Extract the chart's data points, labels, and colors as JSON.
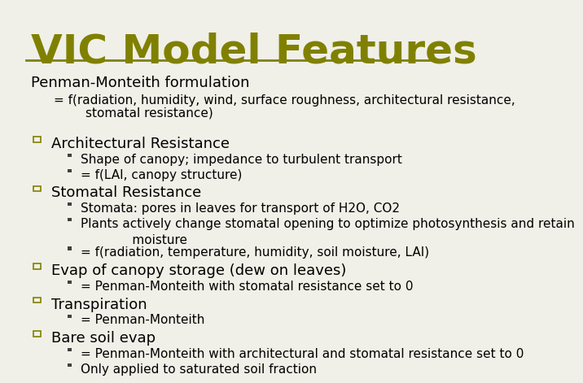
{
  "title": "VIC Model Features",
  "title_color": "#808000",
  "title_fontsize": 36,
  "bg_color": "#f0f0e8",
  "line_color": "#808000",
  "body_color": "#000000",
  "section_header": "Penman-Monteith formulation",
  "section_sub1": "= f(radiation, humidity, wind, surface roughness, architectural resistance,",
  "section_sub2": "        stomatal resistance)",
  "bullet_items": [
    {
      "label": "Architectural Resistance",
      "subitems": [
        "Shape of canopy; impedance to turbulent transport",
        "= f(LAI, canopy structure)"
      ]
    },
    {
      "label": "Stomatal Resistance",
      "subitems": [
        "Stomata: pores in leaves for transport of H2O, CO2",
        "Plants actively change stomatal opening to optimize photosynthesis and retain\n             moisture",
        "= f(radiation, temperature, humidity, soil moisture, LAI)"
      ]
    },
    {
      "label": "Evap of canopy storage (dew on leaves)",
      "subitems": [
        "= Penman-Monteith with stomatal resistance set to 0"
      ]
    },
    {
      "label": "Transpiration",
      "subitems": [
        "= Penman-Monteith"
      ]
    },
    {
      "label": "Bare soil evap",
      "subitems": [
        "= Penman-Monteith with architectural and stomatal resistance set to 0",
        "Only applied to saturated soil fraction"
      ]
    }
  ],
  "header_fontsize": 13,
  "bullet_label_fontsize": 13,
  "bullet_sub_fontsize": 11,
  "square_color": "#808000",
  "mini_square_color": "#404040"
}
